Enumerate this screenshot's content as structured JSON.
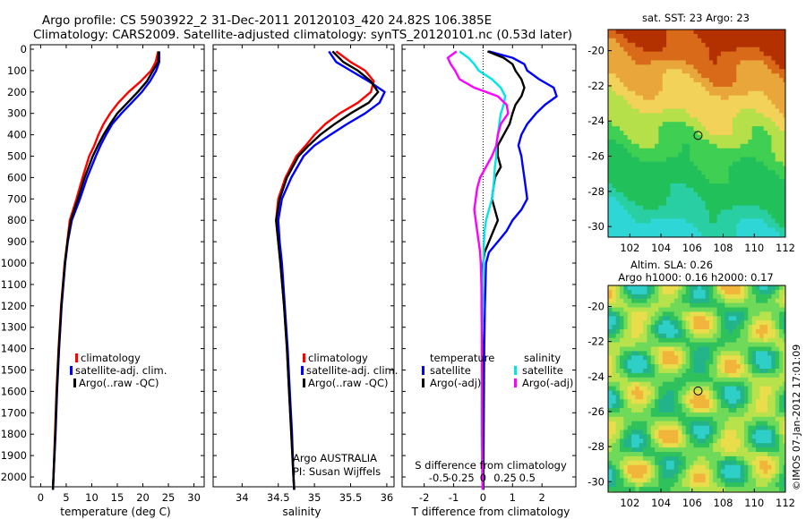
{
  "header": {
    "title_line1": "Argo profile: CS 5903922_2 31-Dec-2011 20120103_420 24.82S 106.385E",
    "title_line2": "Climatology: CARS2009. Satellite-adjusted climatology: synTS_20120101.nc (0.53d later)"
  },
  "colors": {
    "climatology": "#ff0000",
    "satellite": "#0000ff",
    "argo": "#000000",
    "satellite_salinity": "#00e5e5",
    "argo_salinity": "#ff00ff"
  },
  "depth_ticks": [
    "0",
    "100",
    "200",
    "300",
    "400",
    "500",
    "600",
    "700",
    "800",
    "900",
    "1000",
    "1100",
    "1200",
    "1300",
    "1400",
    "1500",
    "1600",
    "1700",
    "1800",
    "1900",
    "2000"
  ],
  "depth_values": [
    0,
    100,
    200,
    300,
    400,
    500,
    600,
    700,
    800,
    900,
    1000,
    1100,
    1200,
    1300,
    1400,
    1500,
    1600,
    1700,
    1800,
    1900,
    2000
  ],
  "chart_data": [
    {
      "type": "line",
      "xlabel": "temperature (deg C)",
      "xlim": [
        -2,
        32
      ],
      "ylim": [
        2060,
        0
      ],
      "x_ticks": [
        0,
        5,
        10,
        15,
        20,
        25,
        30
      ],
      "x_tick_labels": [
        "0",
        "5",
        "10",
        "15",
        "20",
        "25",
        "30"
      ],
      "legend": [
        "climatology",
        "satellite-adj. clim.",
        "Argo(..raw -QC)"
      ],
      "series": [
        {
          "name": "climatology",
          "depth": [
            10,
            60,
            100,
            150,
            200,
            250,
            300,
            350,
            400,
            450,
            500,
            600,
            700,
            800,
            900,
            1000,
            1200,
            1400,
            1600,
            1800,
            2000,
            2060
          ],
          "values": [
            23,
            22.5,
            21.6,
            19.6,
            17.2,
            15.2,
            13.6,
            12.3,
            11.3,
            10.5,
            9.5,
            8.2,
            7.0,
            5.7,
            5.2,
            4.7,
            4.0,
            3.5,
            3.1,
            2.8,
            2.5,
            2.4
          ]
        },
        {
          "name": "satellite-adj. clim.",
          "depth": [
            10,
            60,
            100,
            150,
            200,
            250,
            300,
            350,
            400,
            450,
            500,
            600,
            700,
            800,
            900,
            1000,
            1200,
            1400,
            1600,
            1800,
            2000,
            2060
          ],
          "values": [
            23.2,
            23.2,
            22.6,
            21.4,
            19.8,
            17.8,
            15.8,
            14,
            12.8,
            11.7,
            10.8,
            9.1,
            7.7,
            6.1,
            5.3,
            4.8,
            4.1,
            3.6,
            3.2,
            2.9,
            2.5,
            2.4
          ]
        },
        {
          "name": "Argo(..raw -QC)",
          "depth": [
            10,
            60,
            100,
            150,
            200,
            250,
            300,
            350,
            400,
            450,
            500,
            600,
            700,
            800,
            900,
            1000,
            1200,
            1400,
            1600,
            1800,
            2000,
            2060
          ],
          "values": [
            23.1,
            23.0,
            22.0,
            20.8,
            19.0,
            17.0,
            15.0,
            13.6,
            12.3,
            11.2,
            10.2,
            8.6,
            7.3,
            5.9,
            5.25,
            4.75,
            4.05,
            3.55,
            3.15,
            2.85,
            2.5,
            2.4
          ]
        }
      ]
    },
    {
      "type": "line",
      "xlabel": "salinity",
      "xlim": [
        33.6,
        36.1
      ],
      "ylim": [
        2060,
        0
      ],
      "x_ticks": [
        34,
        34.5,
        35,
        35.5,
        36
      ],
      "x_tick_labels": [
        "34",
        "34.5",
        "35",
        "35.5",
        "36"
      ],
      "legend": [
        "climatology",
        "satellite-adj. clim.",
        "Argo(..raw -QC)"
      ],
      "annotations": [
        "Argo AUSTRALIA",
        "PI: Susan Wijffels"
      ],
      "series": [
        {
          "name": "climatology",
          "depth": [
            10,
            60,
            100,
            150,
            200,
            250,
            300,
            350,
            400,
            450,
            500,
            600,
            700,
            800,
            900,
            1000,
            1200,
            1400,
            1600,
            1800,
            2000,
            2060
          ],
          "values": [
            35.3,
            35.5,
            35.7,
            35.82,
            35.78,
            35.6,
            35.35,
            35.15,
            35.0,
            34.88,
            34.75,
            34.6,
            34.5,
            34.47,
            34.5,
            34.53,
            34.58,
            34.62,
            34.65,
            34.68,
            34.71,
            34.72
          ]
        },
        {
          "name": "satellite-adj. clim.",
          "depth": [
            10,
            60,
            100,
            150,
            200,
            250,
            300,
            350,
            400,
            450,
            500,
            600,
            700,
            800,
            900,
            1000,
            1200,
            1400,
            1600,
            1800,
            2000,
            2060
          ],
          "values": [
            35.2,
            35.3,
            35.5,
            35.75,
            35.97,
            35.9,
            35.7,
            35.45,
            35.22,
            35.0,
            34.85,
            34.68,
            34.55,
            34.5,
            34.52,
            34.55,
            34.59,
            34.63,
            34.66,
            34.69,
            34.71,
            34.72
          ]
        },
        {
          "name": "Argo(..raw -QC)",
          "depth": [
            10,
            60,
            100,
            150,
            200,
            250,
            300,
            350,
            400,
            450,
            500,
            600,
            700,
            800,
            900,
            1000,
            1200,
            1400,
            1600,
            1800,
            2000,
            2060
          ],
          "values": [
            35.25,
            35.4,
            35.6,
            35.78,
            35.88,
            35.75,
            35.5,
            35.28,
            35.08,
            34.92,
            34.78,
            34.62,
            34.52,
            34.47,
            34.5,
            34.53,
            34.58,
            34.62,
            34.65,
            34.68,
            34.71,
            34.72
          ]
        }
      ]
    },
    {
      "type": "line",
      "title": "",
      "xlabel": "T difference from climatology",
      "xlabel_top": "S difference from climatology",
      "xlim": [
        -2.75,
        3.15
      ],
      "ylim": [
        2060,
        0
      ],
      "x_ticks": [
        -2,
        -1,
        0,
        1,
        2
      ],
      "x_tick_labels": [
        "-2",
        "-1",
        "0",
        "1",
        "2"
      ],
      "top_tick_labels": [
        "-0.5",
        "-0.25",
        "0",
        "0.25",
        "0.5"
      ],
      "legend_groups": [
        {
          "title": "temperature",
          "items": [
            "satellite",
            "Argo(-adj)"
          ]
        },
        {
          "title": "salinity",
          "items": [
            "satellite",
            "Argo(-adj)"
          ]
        }
      ],
      "series": [
        {
          "name": "temperature satellite",
          "depth": [
            10,
            40,
            70,
            100,
            140,
            180,
            220,
            260,
            300,
            350,
            400,
            450,
            500,
            550,
            600,
            650,
            700,
            750,
            800,
            850,
            900,
            950,
            1000,
            1100,
            1200,
            1400,
            1600,
            1800,
            2000,
            2060
          ],
          "values": [
            0.2,
            1.0,
            1.4,
            1.5,
            1.9,
            2.4,
            2.5,
            2.1,
            1.8,
            1.5,
            1.3,
            1.2,
            1.3,
            1.35,
            1.4,
            1.45,
            1.5,
            1.3,
            1.0,
            0.8,
            0.5,
            0.2,
            0.1,
            0.08,
            0.06,
            0.04,
            0.03,
            0.02,
            0.01,
            0.01
          ]
        },
        {
          "name": "temperature Argo(-adj)",
          "depth": [
            10,
            40,
            70,
            100,
            140,
            180,
            220,
            260,
            300,
            350,
            400,
            450,
            500,
            550,
            600,
            650,
            700,
            750,
            800,
            850,
            900,
            950,
            1000,
            1100,
            1200,
            1400,
            1600,
            1800,
            2000,
            2060
          ],
          "values": [
            0.15,
            0.7,
            1.0,
            1.1,
            1.3,
            1.4,
            1.3,
            1.1,
            1.0,
            0.9,
            0.7,
            0.5,
            0.5,
            0.6,
            0.4,
            0.35,
            0.3,
            0.4,
            0.5,
            0.35,
            0.2,
            0.05,
            0.0,
            -0.05,
            -0.05,
            -0.02,
            0.0,
            0.0,
            0.0,
            0.0
          ]
        },
        {
          "name": "salinity satellite",
          "depth": [
            10,
            40,
            70,
            100,
            140,
            180,
            220,
            260,
            300,
            350,
            400,
            450,
            500,
            550,
            600,
            650,
            700,
            750,
            800,
            850,
            900,
            950,
            1000,
            1100,
            1200,
            1400,
            1600,
            1800,
            2000,
            2060
          ],
          "values": [
            -0.8,
            -0.5,
            -0.3,
            -0.15,
            0.3,
            0.6,
            0.75,
            0.7,
            0.6,
            0.55,
            0.5,
            0.45,
            0.45,
            0.4,
            0.38,
            0.35,
            0.3,
            0.2,
            0.1,
            0.05,
            0.03,
            0.02,
            0.01,
            0.0,
            0.0,
            -0.05,
            -0.05,
            -0.05,
            -0.03,
            -0.02
          ]
        },
        {
          "name": "salinity Argo(-adj)",
          "depth": [
            10,
            40,
            70,
            100,
            140,
            180,
            220,
            260,
            300,
            350,
            400,
            450,
            500,
            550,
            600,
            650,
            700,
            750,
            800,
            850,
            900,
            950,
            1000,
            1100,
            1200,
            1400,
            1600,
            1800,
            2000,
            2060
          ],
          "values": [
            -0.9,
            -1.2,
            -1.1,
            -0.95,
            -0.8,
            -0.3,
            0.5,
            0.8,
            0.85,
            0.6,
            0.5,
            0.45,
            0.3,
            0.1,
            -0.1,
            -0.2,
            -0.25,
            -0.3,
            -0.25,
            -0.2,
            -0.15,
            -0.1,
            -0.08,
            -0.06,
            -0.05,
            -0.04,
            -0.03,
            -0.03,
            -0.02,
            -0.02
          ]
        }
      ]
    },
    {
      "type": "heatmap",
      "title": "sat. SST: 23 Argo: 23",
      "x_tick_labels": [
        "102",
        "104",
        "106",
        "108",
        "110",
        "112"
      ],
      "y_tick_labels": [
        "-20",
        "-22",
        "-24",
        "-26",
        "-28",
        "-30"
      ],
      "x_ticks": [
        102,
        104,
        106,
        108,
        110,
        112
      ],
      "y_ticks": [
        -20,
        -22,
        -24,
        -26,
        -28,
        -30
      ],
      "xlim": [
        100.6,
        112
      ],
      "ylim": [
        -30.6,
        -18.8
      ],
      "marker": {
        "lon": 106.385,
        "lat": -24.82
      }
    },
    {
      "type": "heatmap",
      "title": "Altim. SLA: 0.26",
      "subtitle": "Argo h1000: 0.16 h2000: 0.17",
      "x_tick_labels": [
        "102",
        "104",
        "106",
        "108",
        "110",
        "112"
      ],
      "y_tick_labels": [
        "-20",
        "-22",
        "-24",
        "-26",
        "-28",
        "-30"
      ],
      "x_ticks": [
        102,
        104,
        106,
        108,
        110,
        112
      ],
      "y_ticks": [
        -20,
        -22,
        -24,
        -26,
        -28,
        -30
      ],
      "xlim": [
        100.6,
        112
      ],
      "ylim": [
        -30.6,
        -18.8
      ],
      "marker": {
        "lon": 106.385,
        "lat": -24.82
      }
    }
  ],
  "watermark": "©IMOS 07-Jan-2012 17:01:09"
}
